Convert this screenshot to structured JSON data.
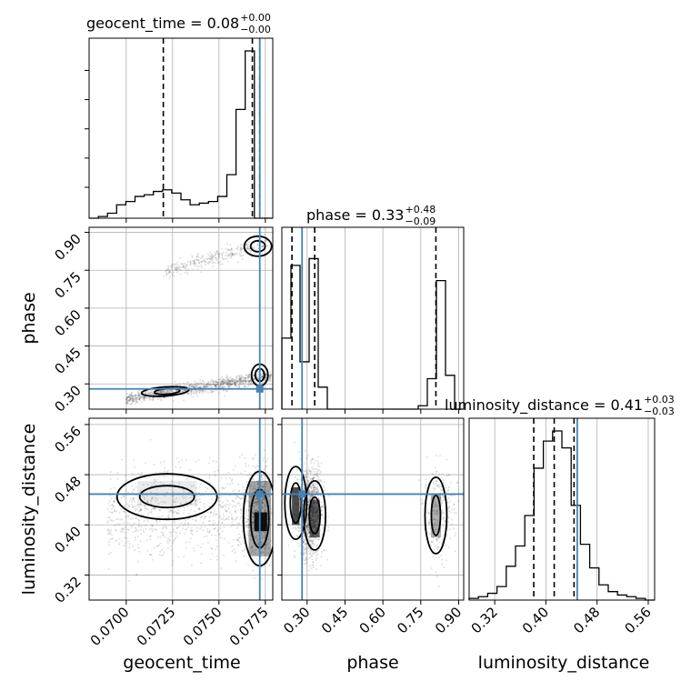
{
  "chart_data": {
    "type": "corner",
    "parameters": [
      "geocent_time",
      "phase",
      "luminosity_distance"
    ],
    "truth": {
      "geocent_time": 0.0772,
      "phase": 0.28,
      "luminosity_distance": 0.449
    },
    "titles": [
      {
        "param": "geocent_time",
        "text": "geocent_time = 0.08",
        "plus": "+0.00",
        "minus": "−0.00"
      },
      {
        "param": "phase",
        "text": "phase = 0.33",
        "plus": "+0.48",
        "minus": "−0.09"
      },
      {
        "param": "luminosity_distance",
        "text": "luminosity_distance = 0.41",
        "plus": "+0.03",
        "minus": "−0.03"
      }
    ],
    "axes": {
      "geocent_time": {
        "range": [
          0.068,
          0.0779
        ],
        "ticks": [
          "0.0700",
          "0.0725",
          "0.0750",
          "0.0775"
        ],
        "label": "geocent_time"
      },
      "phase": {
        "range": [
          0.2,
          0.92
        ],
        "ticks": [
          "0.30",
          "0.45",
          "0.60",
          "0.75",
          "0.90"
        ],
        "label": "phase"
      },
      "luminosity_distance": {
        "range": [
          0.28,
          0.57
        ],
        "ticks": [
          "0.32",
          "0.40",
          "0.48",
          "0.56"
        ],
        "label": "luminosity_distance"
      }
    },
    "quantiles": {
      "geocent_time": [
        0.072,
        0.0768,
        0.0772
      ],
      "phase": [
        0.24,
        0.33,
        0.81
      ],
      "luminosity_distance": [
        0.381,
        0.413,
        0.444
      ]
    },
    "histograms": {
      "geocent_time": {
        "bins": 20,
        "counts": [
          0,
          0.01,
          0.03,
          0.08,
          0.1,
          0.13,
          0.14,
          0.16,
          0.17,
          0.15,
          0.11,
          0.08,
          0.09,
          0.1,
          0.13,
          0.26,
          0.65,
          1.0,
          0,
          0
        ]
      },
      "phase": {
        "bins": 20,
        "counts": [
          0.42,
          0.85,
          0.28,
          0.89,
          0.13,
          0,
          0,
          0,
          0,
          0,
          0,
          0,
          0,
          0,
          0,
          0.02,
          0.18,
          0.76,
          0.2,
          0
        ]
      },
      "luminosity_distance": {
        "bins": 20,
        "counts": [
          0.01,
          0.02,
          0.04,
          0.08,
          0.2,
          0.32,
          0.5,
          0.78,
          0.94,
          1.0,
          0.9,
          0.56,
          0.33,
          0.19,
          0.09,
          0.05,
          0.03,
          0.02,
          0.01,
          0
        ]
      }
    },
    "grid": true,
    "truth_color": "#4682b4"
  }
}
